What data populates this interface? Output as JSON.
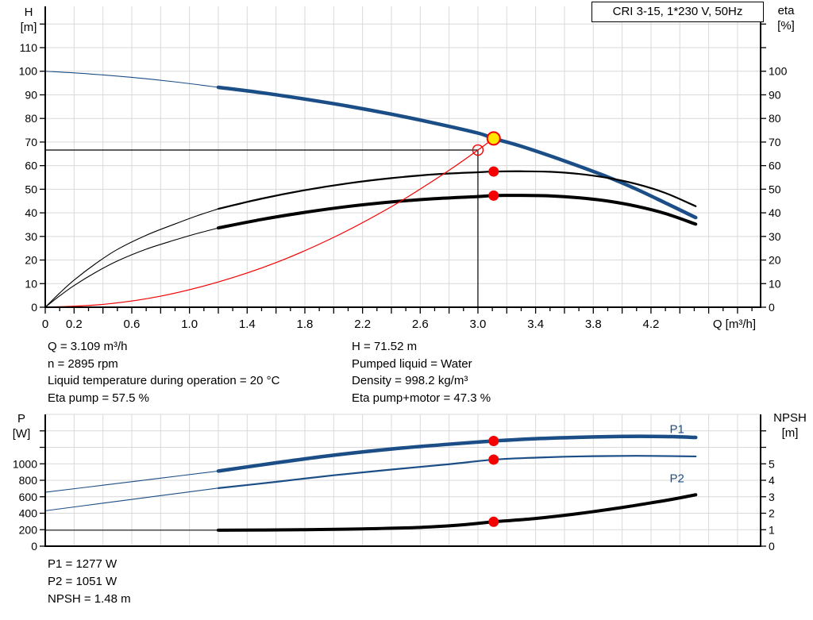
{
  "title_box": {
    "label": "CRI 3-15, 1*230 V, 50Hz"
  },
  "info_top": {
    "left": [
      "Q = 3.109 m³/h",
      "n = 2895 rpm",
      "Liquid temperature during operation = 20 °C",
      "Eta pump = 57.5 %"
    ],
    "right": [
      "H = 71.52 m",
      "Pumped liquid = Water",
      "Density = 998.2 kg/m³",
      "Eta pump+motor = 47.3 %"
    ]
  },
  "info_bottom": [
    "P1 = 1277 W",
    "P2 = 1051 W",
    "NPSH = 1.48 m"
  ],
  "colors": {
    "curve_blue": "#1b4e86",
    "curve_black": "#000000",
    "curve_red": "#f40000",
    "duty_yellow": "#ffe600",
    "grid": "#d9d9d9",
    "axis": "#000000",
    "text": "#000000"
  },
  "chart_data": [
    {
      "type": "line",
      "name": "head-efficiency-chart",
      "x": {
        "label": "Q [m³/h]",
        "lim": [
          0,
          4.96
        ],
        "minor_tick_step": 0.1,
        "major_tick_step": 0.2,
        "grid_step": 0.2,
        "labels": [
          [
            0,
            "0"
          ],
          [
            0.2,
            "0.2"
          ],
          [
            0.6,
            "0.6"
          ],
          [
            1,
            "1.0"
          ],
          [
            1.4,
            "1.4"
          ],
          [
            1.8,
            "1.8"
          ],
          [
            2.2,
            "2.2"
          ],
          [
            2.6,
            "2.6"
          ],
          [
            3,
            "3.0"
          ],
          [
            3.4,
            "3.4"
          ],
          [
            3.8,
            "3.8"
          ],
          [
            4.2,
            "4.2"
          ]
        ]
      },
      "y_left": {
        "title": [
          "H",
          "[m]"
        ],
        "lim": [
          0,
          127.5
        ],
        "grid_step": 10,
        "ticks": [
          [
            0,
            "0"
          ],
          [
            10,
            "10"
          ],
          [
            20,
            "20"
          ],
          [
            30,
            "30"
          ],
          [
            40,
            "40"
          ],
          [
            50,
            "50"
          ],
          [
            60,
            "60"
          ],
          [
            70,
            "70"
          ],
          [
            80,
            "80"
          ],
          [
            90,
            "90"
          ],
          [
            100,
            "100"
          ],
          [
            110,
            "110"
          ],
          [
            120,
            null
          ]
        ]
      },
      "y_right": {
        "title": [
          "eta",
          "[%]"
        ],
        "lim": [
          0,
          127.5
        ],
        "ticks": [
          [
            0,
            "0"
          ],
          [
            10,
            "10"
          ],
          [
            20,
            "20"
          ],
          [
            30,
            "30"
          ],
          [
            40,
            "40"
          ],
          [
            50,
            "50"
          ],
          [
            60,
            "60"
          ],
          [
            70,
            "70"
          ],
          [
            80,
            "80"
          ],
          [
            90,
            "90"
          ],
          [
            100,
            "100"
          ],
          [
            110,
            null
          ],
          [
            120,
            null
          ]
        ]
      },
      "guides": [
        {
          "name": "requested-head-guide-line",
          "axis": "left",
          "points": [
            [
              0,
              66.6
            ],
            [
              3.0,
              66.6
            ]
          ]
        },
        {
          "name": "requested-flow-guide-line",
          "axis": "left",
          "points": [
            [
              3.0,
              0
            ],
            [
              3.0,
              66.6
            ]
          ]
        }
      ],
      "series": [
        {
          "name": "head-curve-leadin",
          "color": "curve_blue",
          "width": 1.1,
          "axis": "left",
          "points": [
            [
              0,
              100
            ],
            [
              0.3,
              98.9
            ],
            [
              0.6,
              97.4
            ],
            [
              0.9,
              95.5
            ],
            [
              1.2,
              93.2
            ]
          ]
        },
        {
          "name": "head-curve",
          "color": "curve_blue",
          "width": 4.5,
          "axis": "left",
          "points": [
            [
              1.2,
              93.2
            ],
            [
              1.5,
              90.9
            ],
            [
              1.8,
              88.2
            ],
            [
              2.1,
              85.2
            ],
            [
              2.4,
              81.8
            ],
            [
              2.7,
              78.0
            ],
            [
              3.0,
              73.8
            ],
            [
              3.109,
              71.52
            ],
            [
              3.3,
              68.2
            ],
            [
              3.6,
              62.0
            ],
            [
              3.9,
              55.2
            ],
            [
              4.1,
              50.0
            ],
            [
              4.3,
              44.2
            ],
            [
              4.51,
              38.0
            ]
          ]
        },
        {
          "name": "eta-pump-curve-leadin",
          "color": "curve_black",
          "width": 1.1,
          "axis": "left",
          "points": [
            [
              0,
              0
            ],
            [
              0.1,
              6
            ],
            [
              0.2,
              11.5
            ],
            [
              0.35,
              18.5
            ],
            [
              0.5,
              24.5
            ],
            [
              0.7,
              30.5
            ],
            [
              0.9,
              35.3
            ],
            [
              1.05,
              38.7
            ],
            [
              1.2,
              41.7
            ]
          ]
        },
        {
          "name": "eta-pump-curve",
          "color": "curve_black",
          "width": 2.2,
          "axis": "left",
          "points": [
            [
              1.2,
              41.7
            ],
            [
              1.5,
              46.0
            ],
            [
              1.8,
              49.6
            ],
            [
              2.1,
              52.5
            ],
            [
              2.4,
              54.7
            ],
            [
              2.7,
              56.3
            ],
            [
              3.0,
              57.2
            ],
            [
              3.109,
              57.5
            ],
            [
              3.3,
              57.6
            ],
            [
              3.5,
              57.4
            ],
            [
              3.7,
              56.5
            ],
            [
              3.9,
              54.8
            ],
            [
              4.1,
              52.2
            ],
            [
              4.3,
              48.4
            ],
            [
              4.51,
              42.8
            ]
          ]
        },
        {
          "name": "eta-pump-motor-curve-leadin",
          "color": "curve_black",
          "width": 1.1,
          "axis": "left",
          "points": [
            [
              0,
              0
            ],
            [
              0.1,
              4.8
            ],
            [
              0.2,
              9.2
            ],
            [
              0.35,
              14.8
            ],
            [
              0.5,
              19.6
            ],
            [
              0.7,
              24.6
            ],
            [
              0.9,
              28.5
            ],
            [
              1.05,
              31.2
            ],
            [
              1.2,
              33.6
            ]
          ]
        },
        {
          "name": "eta-pump-motor-curve",
          "color": "curve_black",
          "width": 4,
          "axis": "left",
          "points": [
            [
              1.2,
              33.6
            ],
            [
              1.5,
              37.2
            ],
            [
              1.8,
              40.2
            ],
            [
              2.1,
              42.7
            ],
            [
              2.4,
              44.6
            ],
            [
              2.7,
              46.0
            ],
            [
              3.0,
              46.9
            ],
            [
              3.109,
              47.3
            ],
            [
              3.3,
              47.4
            ],
            [
              3.5,
              47.2
            ],
            [
              3.7,
              46.4
            ],
            [
              3.9,
              45.0
            ],
            [
              4.1,
              42.8
            ],
            [
              4.3,
              39.7
            ],
            [
              4.51,
              35.2
            ]
          ]
        },
        {
          "name": "system-curve",
          "color": "curve_red",
          "width": 1.2,
          "axis": "left",
          "points": [
            [
              0,
              0
            ],
            [
              0.4,
              1.2
            ],
            [
              0.8,
              4.7
            ],
            [
              1.2,
              10.7
            ],
            [
              1.6,
              18.9
            ],
            [
              2.0,
              29.6
            ],
            [
              2.4,
              42.6
            ],
            [
              2.7,
              54.0
            ],
            [
              2.85,
              60.1
            ],
            [
              3.0,
              66.6
            ],
            [
              3.109,
              71.52
            ]
          ]
        }
      ],
      "markers": [
        {
          "name": "requested-duty-marker",
          "x": 3.0,
          "v": 66.6,
          "axis": "left",
          "r": 6.5,
          "fill": "none",
          "stroke": "curve_red",
          "sw": 1.4
        },
        {
          "name": "eta-pump-point",
          "x": 3.109,
          "v": 57.5,
          "axis": "left",
          "r": 6.5,
          "fill": "curve_red"
        },
        {
          "name": "eta-pump-motor-point",
          "x": 3.109,
          "v": 47.3,
          "axis": "left",
          "r": 6.5,
          "fill": "curve_red"
        },
        {
          "name": "duty-point-marker",
          "x": 3.109,
          "v": 71.52,
          "axis": "left",
          "r": 8,
          "fill": "duty_yellow",
          "stroke": "curve_red",
          "sw": 2
        }
      ],
      "annotations": []
    },
    {
      "type": "line",
      "name": "power-npsh-chart",
      "x": {
        "label": null,
        "lim": [
          0,
          4.96
        ],
        "grid_step": 0.2,
        "labels": []
      },
      "y_left": {
        "title": [
          "P",
          "[W]"
        ],
        "lim": [
          0,
          1600
        ],
        "grid_step": 200,
        "ticks": [
          [
            0,
            "0"
          ],
          [
            200,
            "200"
          ],
          [
            400,
            "400"
          ],
          [
            600,
            "600"
          ],
          [
            800,
            "800"
          ],
          [
            1000,
            "1000"
          ],
          [
            1200,
            null
          ],
          [
            1400,
            null
          ]
        ]
      },
      "y_right": {
        "title": [
          "NPSH",
          "[m]"
        ],
        "lim": [
          0,
          8
        ],
        "ticks": [
          [
            0,
            "0"
          ],
          [
            1,
            "1"
          ],
          [
            2,
            "2"
          ],
          [
            3,
            "3"
          ],
          [
            4,
            "4"
          ],
          [
            5,
            "5"
          ],
          [
            6,
            null
          ],
          [
            7,
            null
          ]
        ]
      },
      "guides": [],
      "series": [
        {
          "name": "p1-curve-leadin",
          "color": "curve_blue",
          "width": 1.1,
          "axis": "left",
          "points": [
            [
              0,
              655
            ],
            [
              0.4,
              740
            ],
            [
              0.8,
              826
            ],
            [
              1.2,
              912
            ]
          ]
        },
        {
          "name": "p1-curve",
          "color": "curve_blue",
          "width": 4.5,
          "axis": "left",
          "points": [
            [
              1.2,
              912
            ],
            [
              1.6,
              1012
            ],
            [
              2.0,
              1105
            ],
            [
              2.4,
              1180
            ],
            [
              2.8,
              1238
            ],
            [
              3.109,
              1277
            ],
            [
              3.4,
              1305
            ],
            [
              3.7,
              1322
            ],
            [
              4.0,
              1332
            ],
            [
              4.2,
              1333
            ],
            [
              4.35,
              1330
            ],
            [
              4.51,
              1320
            ]
          ]
        },
        {
          "name": "p2-curve-leadin",
          "color": "curve_blue",
          "width": 1.1,
          "axis": "left",
          "points": [
            [
              0,
              430
            ],
            [
              0.4,
              522
            ],
            [
              0.8,
              614
            ],
            [
              1.2,
              705
            ]
          ]
        },
        {
          "name": "p2-curve",
          "color": "curve_blue",
          "width": 2.2,
          "axis": "left",
          "points": [
            [
              1.2,
              705
            ],
            [
              1.6,
              781
            ],
            [
              2.0,
              861
            ],
            [
              2.4,
              930
            ],
            [
              2.8,
              995
            ],
            [
              3.109,
              1051
            ],
            [
              3.4,
              1075
            ],
            [
              3.7,
              1090
            ],
            [
              4.0,
              1096
            ],
            [
              4.2,
              1096
            ],
            [
              4.51,
              1090
            ]
          ]
        },
        {
          "name": "npsh-curve-leadin",
          "color": "curve_black",
          "width": 1.1,
          "axis": "right",
          "points": [
            [
              0,
              0.97
            ],
            [
              0.6,
              0.97
            ],
            [
              1.2,
              0.97
            ]
          ]
        },
        {
          "name": "npsh-curve",
          "color": "curve_black",
          "width": 4,
          "axis": "right",
          "points": [
            [
              1.2,
              0.97
            ],
            [
              1.8,
              1.0
            ],
            [
              2.2,
              1.05
            ],
            [
              2.6,
              1.14
            ],
            [
              2.9,
              1.3
            ],
            [
              3.109,
              1.48
            ],
            [
              3.4,
              1.68
            ],
            [
              3.7,
              1.98
            ],
            [
              4.0,
              2.35
            ],
            [
              4.2,
              2.63
            ],
            [
              4.35,
              2.85
            ],
            [
              4.51,
              3.12
            ]
          ]
        }
      ],
      "markers": [
        {
          "name": "p1-point",
          "x": 3.109,
          "v": 1277,
          "axis": "left",
          "r": 6.5,
          "fill": "curve_red"
        },
        {
          "name": "p2-point",
          "x": 3.109,
          "v": 1051,
          "axis": "left",
          "r": 6.5,
          "fill": "curve_red"
        },
        {
          "name": "npsh-point",
          "x": 3.109,
          "v": 1.48,
          "axis": "right",
          "r": 6.5,
          "fill": "curve_red"
        }
      ],
      "annotations": [
        {
          "name": "series-label-p1",
          "text": "P1",
          "x": 4.33,
          "v": 1375,
          "axis": "left",
          "color": "curve_blue"
        },
        {
          "name": "series-label-p2",
          "text": "P2",
          "x": 4.33,
          "v": 775,
          "axis": "left",
          "color": "curve_blue"
        }
      ]
    }
  ]
}
